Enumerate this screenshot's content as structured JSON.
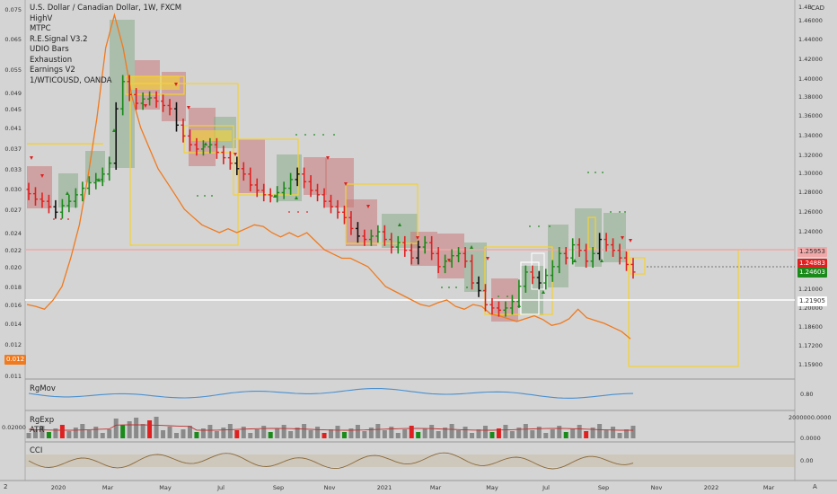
{
  "legend": {
    "symbol": "U.S. Dollar / Canadian Dollar, 1W, FXCM",
    "indicators": [
      "HighV",
      "MTPC",
      "R.E.Signal V3.2",
      "UDIO Bars",
      "Exhaustion",
      "Earnings V2",
      "1/WTICOUSD, OANDA"
    ]
  },
  "currency_label": "CAD",
  "corner_number": "2",
  "corner_right": "A",
  "panes": {
    "rgmov": {
      "label": "RgMov",
      "tick": "0.80"
    },
    "rgexp": {
      "label": "RgExp",
      "sub_label": "ATR",
      "left_tick": "0.02000",
      "ticks": [
        "2000000.0000",
        "0.0000"
      ]
    },
    "cci": {
      "label": "CCI",
      "tick": "0.00"
    }
  },
  "badges": {
    "level_pink": "1.25953",
    "price_red": "1.24883",
    "price_green": "1.24603",
    "level_white": "1.21905",
    "left_orange": "0.012"
  },
  "colors": {
    "background": "#d4d4d4",
    "up": "#1a8a1a",
    "down": "#e02020",
    "oil": "#f07a1e",
    "box_yellow": "#f5d230",
    "box_red": "#c87878",
    "box_green": "#88aa88",
    "level_pink": "#f0a8a8",
    "level_white": "#ffffff",
    "rgmov": "#4a90d0",
    "atr": "#c03030",
    "cci": "#8a6a3a"
  },
  "chart_data": {
    "type": "candlestick",
    "title": "U.S. Dollar / Canadian Dollar, 1W, FXCM",
    "y_right": {
      "ticks": [
        "1.46000",
        "1.44000",
        "1.42000",
        "1.40000",
        "1.38000",
        "1.36000",
        "1.34000",
        "1.32000",
        "1.30000",
        "1.28000",
        "1.26000",
        "1.24000",
        "1.23000",
        "1.22000",
        "1.21000",
        "1.20000",
        "1.18600",
        "1.17200",
        "1.15900"
      ],
      "top": "1.4B",
      "ylim": [
        1.155,
        1.485
      ]
    },
    "y_left": {
      "ticks": [
        "0.075",
        "0.065",
        "0.055",
        "0.049",
        "0.045",
        "0.041",
        "0.037",
        "0.033",
        "0.030",
        "0.027",
        "0.024",
        "0.022",
        "0.020",
        "0.018",
        "0.016",
        "0.014",
        "0.012",
        "0.011"
      ]
    },
    "x_ticks": [
      "2020",
      "Mar",
      "May",
      "Jul",
      "Sep",
      "Nov",
      "2021",
      "Mar",
      "May",
      "Jul",
      "Sep",
      "Nov",
      "2022",
      "Mar"
    ],
    "ohlc_close": [
      1.317,
      1.312,
      1.31,
      1.305,
      1.3,
      1.306,
      1.31,
      1.316,
      1.322,
      1.327,
      1.33,
      1.335,
      1.345,
      1.395,
      1.42,
      1.408,
      1.4,
      1.404,
      1.405,
      1.402,
      1.398,
      1.395,
      1.38,
      1.37,
      1.362,
      1.358,
      1.36,
      1.362,
      1.355,
      1.35,
      1.345,
      1.34,
      1.335,
      1.325,
      1.32,
      1.316,
      1.315,
      1.318,
      1.322,
      1.33,
      1.335,
      1.328,
      1.32,
      1.316,
      1.31,
      1.305,
      1.3,
      1.295,
      1.285,
      1.278,
      1.275,
      1.278,
      1.282,
      1.275,
      1.268,
      1.272,
      1.265,
      1.258,
      1.268,
      1.272,
      1.262,
      1.25,
      1.255,
      1.26,
      1.262,
      1.255,
      1.235,
      1.228,
      1.215,
      1.212,
      1.21,
      1.212,
      1.218,
      1.232,
      1.245,
      1.24,
      1.235,
      1.242,
      1.25,
      1.262,
      1.258,
      1.27,
      1.265,
      1.255,
      1.262,
      1.275,
      1.27,
      1.265,
      1.258,
      1.252,
      1.245
    ],
    "oil_inverse_series": [
      0.016,
      0.0158,
      0.0155,
      0.0165,
      0.018,
      0.021,
      0.025,
      0.032,
      0.043,
      0.062,
      0.073,
      0.062,
      0.048,
      0.041,
      0.037,
      0.033,
      0.031,
      0.029,
      0.027,
      0.026,
      0.025,
      0.0245,
      0.024,
      0.0245,
      0.024,
      0.0245,
      0.025,
      0.0248,
      0.024,
      0.0235,
      0.024,
      0.0235,
      0.024,
      0.023,
      0.022,
      0.0215,
      0.021,
      0.021,
      0.0205,
      0.02,
      0.019,
      0.018,
      0.0175,
      0.017,
      0.0165,
      0.016,
      0.0158,
      0.0162,
      0.0165,
      0.0158,
      0.0155,
      0.016,
      0.0158,
      0.015,
      0.0148,
      0.0145,
      0.0142,
      0.0145,
      0.0148,
      0.0144,
      0.0138,
      0.014,
      0.0145,
      0.0155,
      0.0146,
      0.0143,
      0.014,
      0.0136,
      0.0132,
      0.0125
    ],
    "levels": {
      "pink": 1.25953,
      "white": 1.21905
    }
  }
}
